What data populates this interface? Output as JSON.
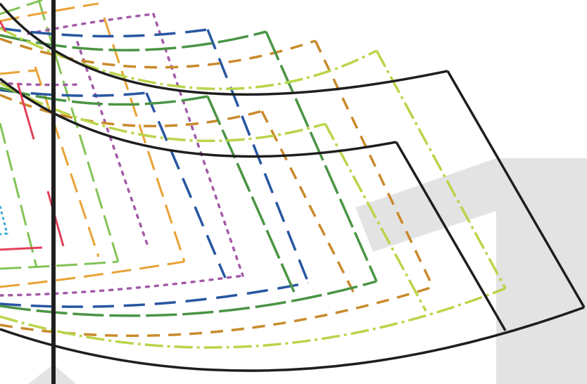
{
  "title": "",
  "colors": {
    "background": "#ffffff",
    "backdrop_gray": "#e3e3e3",
    "black": "#1e1e1e",
    "dark_green": "#4a9444",
    "lime": "#b9d54a",
    "light_green": "#82c455",
    "orange_dashed": "#c98a2b",
    "orange": "#e9a235",
    "blue": "#2856a1",
    "purple": "#a45ba8",
    "red": "#e2405a",
    "cyan": "#3da9d6"
  },
  "layers": [
    {
      "name": "outer-arc-band",
      "color": "black",
      "style": "solid"
    },
    {
      "name": "inner-arc-band",
      "color": "black",
      "style": "solid"
    },
    {
      "name": "green-frame-outer",
      "color": "dark_green",
      "style": "long-dash"
    },
    {
      "name": "green-frame-inner",
      "color": "dark_green",
      "style": "long-dash"
    },
    {
      "name": "lime-frame-outer",
      "color": "lime",
      "style": "dash-dot"
    },
    {
      "name": "lime-frame-inner",
      "color": "lime",
      "style": "dash-dot"
    },
    {
      "name": "orange-frame-outer",
      "color": "orange_dashed",
      "style": "dashed"
    },
    {
      "name": "orange-frame-inner",
      "color": "orange_dashed",
      "style": "dashed"
    },
    {
      "name": "blue-frame",
      "color": "blue",
      "style": "long-dash"
    },
    {
      "name": "purple-frame",
      "color": "purple",
      "style": "dotted"
    },
    {
      "name": "orange-strokes",
      "color": "orange",
      "style": "long-dash"
    },
    {
      "name": "light-green-frame",
      "color": "light_green",
      "style": "long-dash"
    },
    {
      "name": "red-strokes",
      "color": "red",
      "style": "solid"
    },
    {
      "name": "cyan-mark",
      "color": "cyan",
      "style": "dotted"
    },
    {
      "name": "vertical-axis",
      "color": "black",
      "style": "solid"
    }
  ]
}
